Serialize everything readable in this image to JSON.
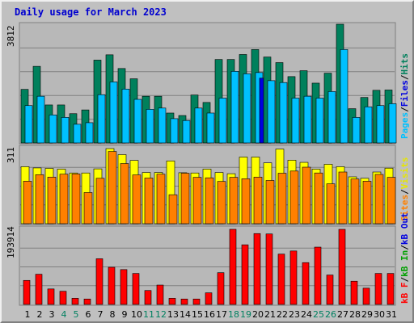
{
  "chart_data": {
    "type": "bar",
    "title": "Daily usage for March 2023",
    "categories": [
      "1",
      "2",
      "3",
      "4",
      "5",
      "6",
      "7",
      "8",
      "9",
      "10",
      "11",
      "12",
      "13",
      "14",
      "15",
      "16",
      "17",
      "18",
      "19",
      "20",
      "21",
      "22",
      "23",
      "24",
      "25",
      "26",
      "27",
      "28",
      "29",
      "30",
      "31"
    ],
    "weekend_days": [
      "4",
      "5",
      "11",
      "12",
      "18",
      "19",
      "25",
      "26"
    ],
    "panels": [
      {
        "id": "top",
        "max_label": "3812",
        "ymax": 3812,
        "series": [
          {
            "name": "Hits",
            "color": "#00805c",
            "values": [
              1720,
              2460,
              1220,
              1220,
              940,
              1060,
              2660,
              2830,
              2390,
              2060,
              1500,
              1500,
              960,
              880,
              1540,
              1300,
              2680,
              2680,
              2840,
              3000,
              2760,
              2580,
              2130,
              2320,
              1920,
              2240,
              3812,
              1100,
              1460,
              1690,
              1700
            ]
          },
          {
            "name": "Files",
            "color": "#00c0ff",
            "values": [
              1200,
              1500,
              900,
              820,
              600,
              650,
              1550,
              1960,
              1730,
              1400,
              1080,
              1120,
              780,
              720,
              1120,
              960,
              1440,
              2300,
              2220,
              2260,
              2000,
              1940,
              1440,
              1500,
              1440,
              1650,
              3000,
              820,
              1160,
              1200,
              1260
            ]
          },
          {
            "name": "Pages",
            "color": "#0000e0",
            "values": [
              0,
              0,
              0,
              0,
              0,
              0,
              0,
              0,
              0,
              0,
              0,
              0,
              0,
              0,
              0,
              0,
              0,
              0,
              0,
              2080,
              0,
              0,
              0,
              0,
              0,
              0,
              0,
              0,
              0,
              0,
              0
            ]
          }
        ]
      },
      {
        "id": "middle",
        "max_label": "311",
        "ymax": 311,
        "series": [
          {
            "name": "Visits",
            "color": "#ffff00",
            "values": [
              236,
              231,
              229,
              226,
              210,
              210,
              227,
              311,
              286,
              262,
              212,
              212,
              260,
              211,
              210,
              226,
              212,
              207,
              276,
              276,
              252,
              309,
              263,
              254,
              226,
              246,
              236,
              194,
              188,
              214,
              230
            ]
          },
          {
            "name": "Sites",
            "color": "#ff8000",
            "values": [
              176,
              203,
              193,
              205,
              206,
              129,
              188,
              299,
              249,
              202,
              189,
              205,
              120,
              209,
              192,
              190,
              175,
              192,
              186,
              193,
              179,
              209,
              218,
              234,
              210,
              165,
              214,
              185,
              176,
              204,
              192
            ]
          }
        ]
      },
      {
        "id": "bottom",
        "max_label": "193914",
        "ymax": 193914,
        "series": [
          {
            "name": "KB F",
            "color": "#ff0000",
            "values": [
              62000,
              78000,
              40000,
              34000,
              16000,
              14000,
              118000,
              96000,
              90000,
              80000,
              36000,
              50000,
              16000,
              14000,
              14000,
              30000,
              82000,
              194000,
              154000,
              183000,
              182000,
              130000,
              138000,
              108000,
              148000,
              76000,
              193914,
              60000,
              42000,
              80000,
              80000
            ]
          }
        ]
      }
    ],
    "legend_top": [
      "Pages",
      "/",
      "Files",
      "/",
      "Hits"
    ],
    "legend_mid": [
      "Visits",
      "/",
      "Sites"
    ],
    "legend_bot": [
      "kB F",
      "/",
      "kB In",
      "/",
      "kB Out"
    ]
  }
}
